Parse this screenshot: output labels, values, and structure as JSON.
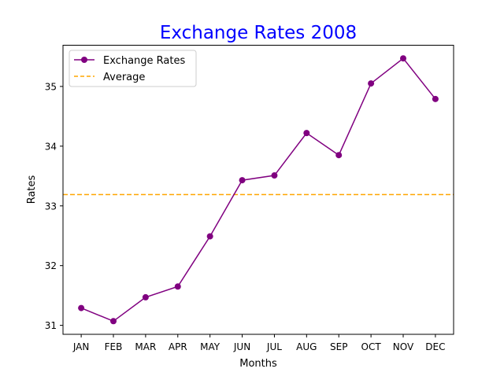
{
  "chart_data": {
    "type": "line",
    "title": "Exchange Rates 2008",
    "xlabel": "Months",
    "ylabel": "Rates",
    "categories": [
      "JAN",
      "FEB",
      "MAR",
      "APR",
      "MAY",
      "JUN",
      "JUL",
      "AUG",
      "SEP",
      "OCT",
      "NOV",
      "DEC"
    ],
    "series": [
      {
        "name": "Exchange Rates",
        "values": [
          31.29,
          31.07,
          31.47,
          31.65,
          32.49,
          33.43,
          33.51,
          34.22,
          33.85,
          35.05,
          35.47,
          34.79
        ],
        "color": "#800080",
        "marker": "circle"
      }
    ],
    "reference_lines": [
      {
        "name": "Average",
        "value": 33.19,
        "color": "#ffa500",
        "style": "dashed"
      }
    ],
    "yticks": [
      31,
      32,
      33,
      34,
      35
    ],
    "ylim": [
      30.85,
      35.69
    ],
    "grid": false,
    "legend": "top-left",
    "colors": {
      "title": "#0000ff",
      "axis": "#000000"
    }
  }
}
